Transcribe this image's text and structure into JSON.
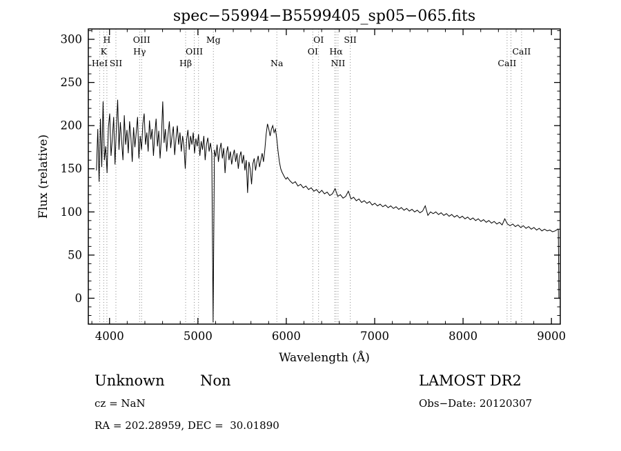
{
  "title": "spec−55994−B5599405_sp05−065.fits",
  "footer": {
    "object_class": "Unknown",
    "subclass": "Non",
    "survey": "LAMOST DR2",
    "cz": "cz = NaN",
    "obs_date": "Obs−Date: 20120307",
    "coords": "RA = 202.28959, DEC =  30.01890"
  },
  "chart_data": {
    "type": "line",
    "title": "spec−55994−B5599405_sp05−065.fits",
    "xlabel": "Wavelength (Å)",
    "ylabel": "Flux (relative)",
    "xlim": [
      3760,
      9100
    ],
    "ylim": [
      -30,
      312
    ],
    "x_ticks": [
      4000,
      5000,
      6000,
      7000,
      8000,
      9000
    ],
    "x_minor_step": 200,
    "y_ticks": [
      0,
      50,
      100,
      150,
      200,
      250,
      300
    ],
    "y_minor_step": 10,
    "line_color": "#000000",
    "marker_color": "#8a8a8a",
    "grid": false,
    "legend": "none",
    "spectral_lines": [
      {
        "label": "HeI",
        "wavelength": 3889,
        "row": 2
      },
      {
        "label": "K",
        "wavelength": 3934,
        "row": 1
      },
      {
        "label": "H",
        "wavelength": 3970,
        "row": 0
      },
      {
        "label": "SII",
        "wavelength": 4072,
        "row": 2
      },
      {
        "label": "Hγ",
        "wavelength": 4340,
        "row": 1
      },
      {
        "label": "OIII",
        "wavelength": 4363,
        "row": 0
      },
      {
        "label": "Hβ",
        "wavelength": 4861,
        "row": 2
      },
      {
        "label": "OIII",
        "wavelength": 4959,
        "row": 1
      },
      {
        "label": "",
        "wavelength": 5007,
        "row": 1
      },
      {
        "label": "Mg",
        "wavelength": 5175,
        "row": 0
      },
      {
        "label": "Na",
        "wavelength": 5893,
        "row": 2
      },
      {
        "label": "OI",
        "wavelength": 6300,
        "row": 1
      },
      {
        "label": "OI",
        "wavelength": 6365,
        "row": 0
      },
      {
        "label": "",
        "wavelength": 6548,
        "row": 1
      },
      {
        "label": "Hα",
        "wavelength": 6563,
        "row": 1
      },
      {
        "label": "NII",
        "wavelength": 6585,
        "row": 2
      },
      {
        "label": "SII",
        "wavelength": 6724,
        "row": 0
      },
      {
        "label": "CaII",
        "wavelength": 8498,
        "row": 2
      },
      {
        "label": "",
        "wavelength": 8542,
        "row": 2
      },
      {
        "label": "CaII",
        "wavelength": 8662,
        "row": 1
      }
    ],
    "segments": [
      {
        "x_start": 3852,
        "x_step": 15,
        "flux": [
          148,
          196,
          135,
          208,
          152,
          228,
          160,
          176,
          145,
          198,
          214,
          165,
          185,
          210,
          155,
          196,
          230,
          172,
          204,
          182,
          160,
          212,
          178,
          195,
          168,
          205,
          186,
          158,
          198,
          175,
          192,
          210,
          162,
          188,
          172,
          202,
          214,
          178,
          192,
          170,
          206,
          184,
          196,
          165,
          190,
          208,
          176,
          194,
          162,
          186,
          228,
          180,
          196,
          170,
          190,
          205,
          174,
          188,
          199,
          166,
          185,
          200,
          178,
          192,
          170,
          188,
          176,
          150,
          184,
          195,
          172,
          188,
          178,
          192,
          168,
          185,
          176,
          190,
          165,
          182,
          172,
          188,
          160,
          178,
          186,
          170,
          180,
          168,
          -28,
          172,
          164,
          178,
          158,
          172,
          180,
          162,
          174,
          145,
          168,
          176,
          160,
          170,
          155,
          165,
          172,
          158,
          168,
          150,
          164,
          170,
          156,
          166,
          148,
          160,
          122,
          158,
          150,
          132,
          156,
          162,
          148,
          158,
          165,
          152,
          160,
          168,
          158,
          172,
          190,
          202,
          196,
          188,
          196,
          200,
          192,
          196,
          185,
          170,
          158,
          150,
          146,
          143,
          140,
          138
        ]
      },
      {
        "x_start": 6012,
        "x_step": 30,
        "flux": [
          140,
          136,
          133,
          135,
          130,
          132,
          128,
          130,
          126,
          128,
          124,
          126,
          122,
          125,
          121,
          123,
          119,
          121,
          127,
          118,
          120,
          116,
          118,
          124,
          115,
          117,
          113,
          115,
          111,
          113,
          110,
          112,
          108,
          110,
          107,
          109,
          106,
          108,
          105,
          107,
          104,
          106,
          103,
          105,
          102,
          104,
          101,
          103,
          100,
          102,
          99,
          101,
          107,
          96,
          100,
          98,
          100,
          97,
          99,
          96,
          98,
          95,
          97,
          94,
          96,
          93,
          95,
          92,
          94,
          91,
          93,
          90,
          92,
          89,
          91,
          88,
          90,
          87,
          89,
          86,
          88,
          85,
          92,
          86,
          84,
          86,
          83,
          85,
          82,
          84,
          81,
          83,
          80,
          82,
          79,
          81,
          78,
          80,
          78,
          79,
          77,
          78,
          80
        ]
      },
      {
        "x_start": 9078,
        "x_step": 6,
        "flux": [
          79,
          0
        ]
      }
    ]
  }
}
